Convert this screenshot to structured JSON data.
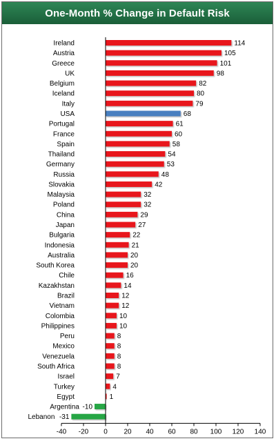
{
  "chart_data": {
    "type": "bar",
    "orientation": "horizontal",
    "title": "One-Month % Change in Default Risk",
    "categories": [
      "Ireland",
      "Austria",
      "Greece",
      "UK",
      "Belgium",
      "Iceland",
      "Italy",
      "USA",
      "Portugal",
      "France",
      "Spain",
      "Thailand",
      "Germany",
      "Russia",
      "Slovakia",
      "Malaysia",
      "Poland",
      "China",
      "Japan",
      "Bulgaria",
      "Indonesia",
      "Australia",
      "South Korea",
      "Chile",
      "Kazakhstan",
      "Brazil",
      "Vietnam",
      "Colombia",
      "Philippines",
      "Peru",
      "Mexico",
      "Venezuela",
      "South Africa",
      "Israel",
      "Turkey",
      "Egypt",
      "Argentina",
      "Lebanon"
    ],
    "values": [
      114,
      105,
      101,
      98,
      82,
      80,
      79,
      68,
      61,
      60,
      58,
      54,
      53,
      48,
      42,
      32,
      32,
      29,
      27,
      22,
      21,
      20,
      20,
      16,
      14,
      12,
      12,
      10,
      10,
      8,
      8,
      8,
      8,
      7,
      4,
      1,
      -10,
      -31
    ],
    "xlim": [
      -40,
      140
    ],
    "xticks": [
      -40,
      -20,
      0,
      20,
      40,
      60,
      80,
      100,
      120,
      140
    ],
    "colors": {
      "positive": "#e8141c",
      "highlight": "#4a7fc0",
      "negative": "#27a644"
    },
    "highlight_category": "USA",
    "grid": false,
    "legend": "none"
  }
}
